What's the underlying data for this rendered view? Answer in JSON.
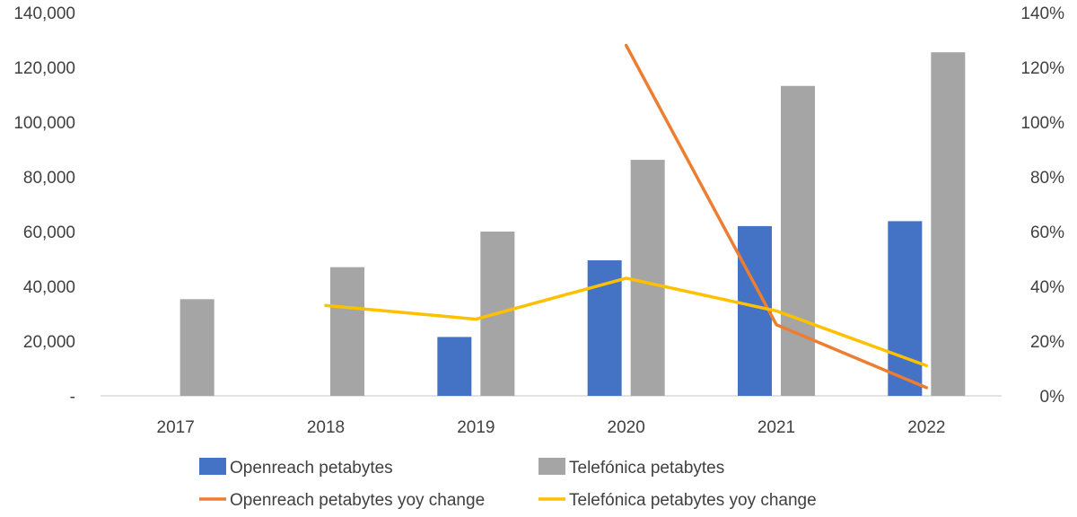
{
  "chart_data": {
    "type": "bar",
    "categories": [
      "2017",
      "2018",
      "2019",
      "2020",
      "2021",
      "2022"
    ],
    "y_left": {
      "ylim": [
        0,
        140000
      ],
      "ticks": [
        0,
        20000,
        40000,
        60000,
        80000,
        100000,
        120000,
        140000
      ],
      "tick_labels": [
        "-",
        "20,000",
        "40,000",
        "60,000",
        "80,000",
        "100,000",
        "120,000",
        "140,000"
      ]
    },
    "y_right": {
      "ylim": [
        0,
        1.4
      ],
      "ticks": [
        0,
        0.2,
        0.4,
        0.6,
        0.8,
        1.0,
        1.2,
        1.4
      ],
      "tick_labels": [
        "0%",
        "20%",
        "40%",
        "60%",
        "80%",
        "100%",
        "120%",
        "140%"
      ]
    },
    "series": [
      {
        "name": "Openreach petabytes",
        "type": "bar",
        "axis": "left",
        "color": "#4472C4",
        "values": [
          null,
          null,
          21500,
          49500,
          62000,
          63800
        ]
      },
      {
        "name": "Telefónica petabytes",
        "type": "bar",
        "axis": "left",
        "color": "#A5A5A5",
        "values": [
          35300,
          47000,
          60000,
          86200,
          113200,
          125500
        ]
      },
      {
        "name": "Openreach petabytes yoy change",
        "type": "line",
        "axis": "right",
        "color": "#ED7D31",
        "values": [
          null,
          null,
          null,
          1.28,
          0.26,
          0.03
        ]
      },
      {
        "name": "Telefónica petabytes yoy change",
        "type": "line",
        "axis": "right",
        "color": "#FFC000",
        "values": [
          null,
          0.33,
          0.28,
          0.43,
          0.31,
          0.11
        ]
      }
    ],
    "grid": false,
    "legend_position": "bottom"
  }
}
